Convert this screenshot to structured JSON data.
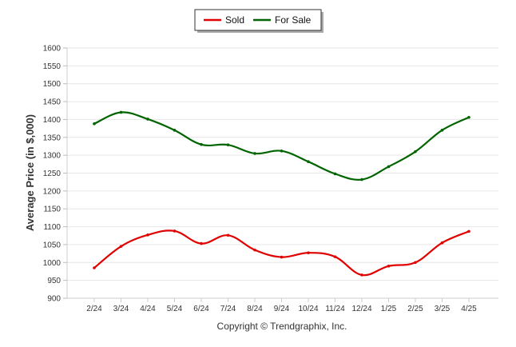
{
  "chart_data": {
    "type": "line",
    "categories": [
      "2/24",
      "3/24",
      "4/24",
      "5/24",
      "6/24",
      "7/24",
      "8/24",
      "9/24",
      "10/24",
      "11/24",
      "12/24",
      "1/25",
      "2/25",
      "3/25",
      "4/25"
    ],
    "series": [
      {
        "name": "Sold",
        "color": "#e00000",
        "values": [
          985,
          1045,
          1077,
          1088,
          1053,
          1076,
          1035,
          1015,
          1027,
          1016,
          965,
          990,
          1000,
          1055,
          1087
        ]
      },
      {
        "name": "For Sale",
        "color": "#006400",
        "values": [
          1388,
          1420,
          1401,
          1370,
          1330,
          1329,
          1305,
          1312,
          1282,
          1248,
          1232,
          1268,
          1310,
          1370,
          1406
        ]
      }
    ],
    "ylabel": "Average Price (in $,000)",
    "xlabel": "",
    "ylim": [
      900,
      1600
    ],
    "yticks": [
      900,
      950,
      1000,
      1050,
      1100,
      1150,
      1200,
      1250,
      1300,
      1350,
      1400,
      1450,
      1500,
      1550,
      1600
    ],
    "grid": true,
    "legend_position": "top-center"
  },
  "footer": {
    "credit": "Copyright © Trendgraphix, Inc."
  }
}
